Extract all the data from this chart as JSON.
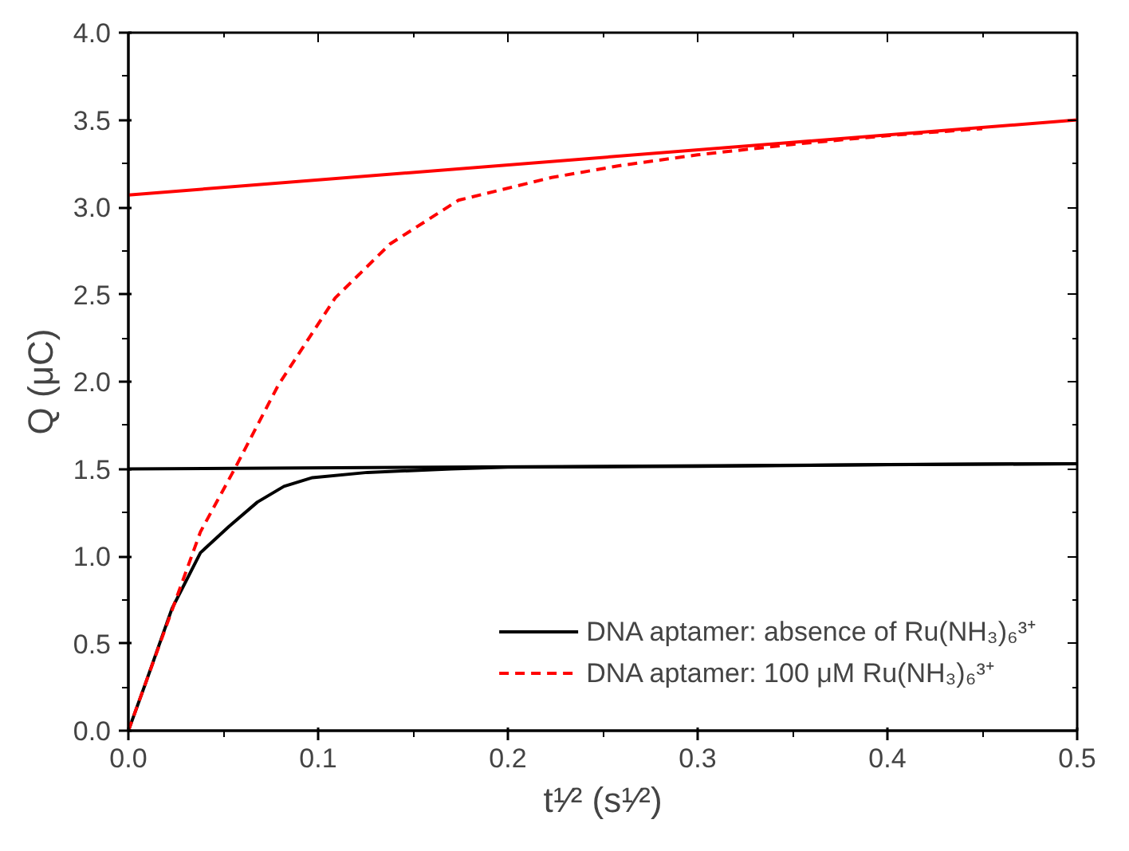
{
  "chart_data": {
    "type": "line",
    "xlabel": "t¹⁄² (s¹⁄²)",
    "ylabel": "Q (μC)",
    "xlim": [
      0,
      0.5
    ],
    "ylim": [
      0,
      4.0
    ],
    "xticks": [
      {
        "value": 0,
        "label": "0.0"
      },
      0.1,
      0.2,
      0.3,
      0.4,
      0.5
    ],
    "yticks": [
      {
        "value": 0,
        "label": "0.0"
      },
      0.5,
      {
        "value": 1,
        "label": "1.0"
      },
      1.5,
      {
        "value": 2,
        "label": "2.0"
      },
      2.5,
      {
        "value": 3,
        "label": "3.0"
      },
      3.5,
      {
        "value": 4,
        "label": "4.0"
      }
    ],
    "grid": false,
    "legend": "bottom right",
    "series": [
      {
        "name": "DNA aptamer: absence of Ru(NH₃)₆³⁺",
        "color": "#000000",
        "line_style": "solid",
        "x": [
          0,
          0.009,
          0.023,
          0.038,
          0.053,
          0.068,
          0.082,
          0.097,
          0.126,
          0.17,
          0.2,
          0.3,
          0.4,
          0.5
        ],
        "values": [
          0,
          0.27,
          0.7,
          1.02,
          1.17,
          1.31,
          1.4,
          1.45,
          1.48,
          1.5,
          1.51,
          1.515,
          1.525,
          1.53
        ]
      },
      {
        "name": "DNA aptamer: 100 μM Ru(NH₃)₆³⁺",
        "color": "#ff0000",
        "line_style": "dashed",
        "x": [
          0,
          0.01,
          0.02,
          0.038,
          0.056,
          0.079,
          0.109,
          0.138,
          0.174,
          0.223,
          0.26,
          0.3,
          0.35,
          0.4,
          0.45
        ],
        "values": [
          0,
          0.3,
          0.6,
          1.14,
          1.5,
          1.98,
          2.48,
          2.79,
          3.04,
          3.17,
          3.24,
          3.3,
          3.36,
          3.41,
          3.45
        ]
      },
      {
        "color": "#000000",
        "line_style": "solid",
        "x": [
          0,
          0.5
        ],
        "values": [
          1.5,
          1.53
        ]
      },
      {
        "color": "#ff0000",
        "line_style": "solid",
        "x": [
          0,
          0.5
        ],
        "values": [
          3.07,
          3.5
        ]
      }
    ]
  }
}
